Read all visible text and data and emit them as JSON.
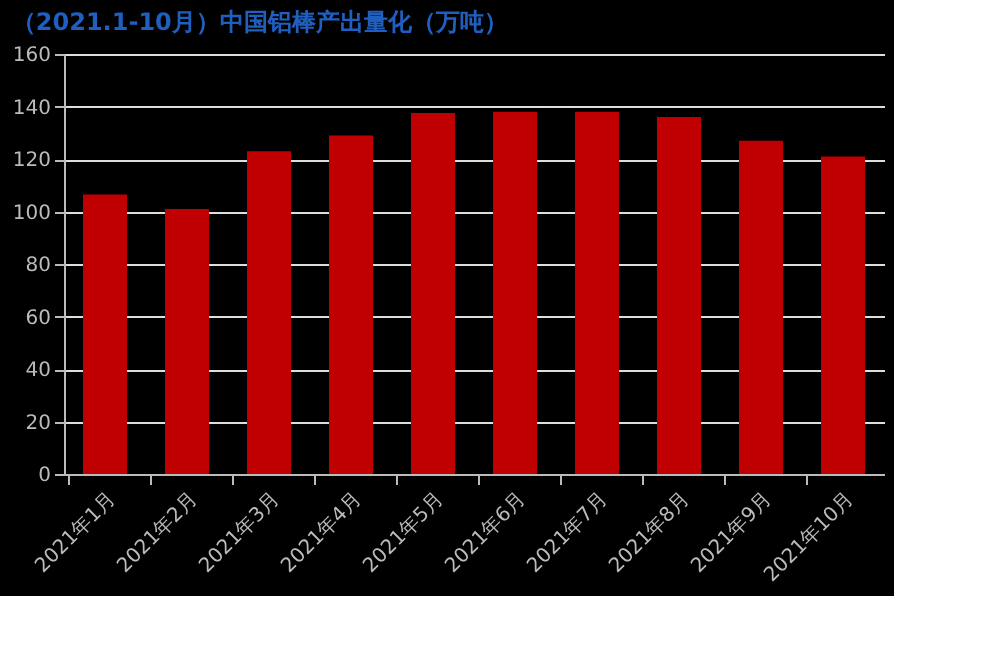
{
  "chart_data": {
    "type": "bar",
    "title": "（2021.1-10月）中国铝棒产出量化（万吨）",
    "categories": [
      "2021年1月",
      "2021年2月",
      "2021年3月",
      "2021年4月",
      "2021年5月",
      "2021年6月",
      "2021年7月",
      "2021年8月",
      "2021年9月",
      "2021年10月"
    ],
    "values": [
      106.5,
      101,
      123,
      129,
      137.5,
      138,
      138,
      136,
      127,
      121
    ],
    "color": "#c00000",
    "ylim": [
      0,
      160
    ],
    "yticks": [
      0,
      20,
      40,
      60,
      80,
      100,
      120,
      140,
      160
    ],
    "grid": "y"
  }
}
